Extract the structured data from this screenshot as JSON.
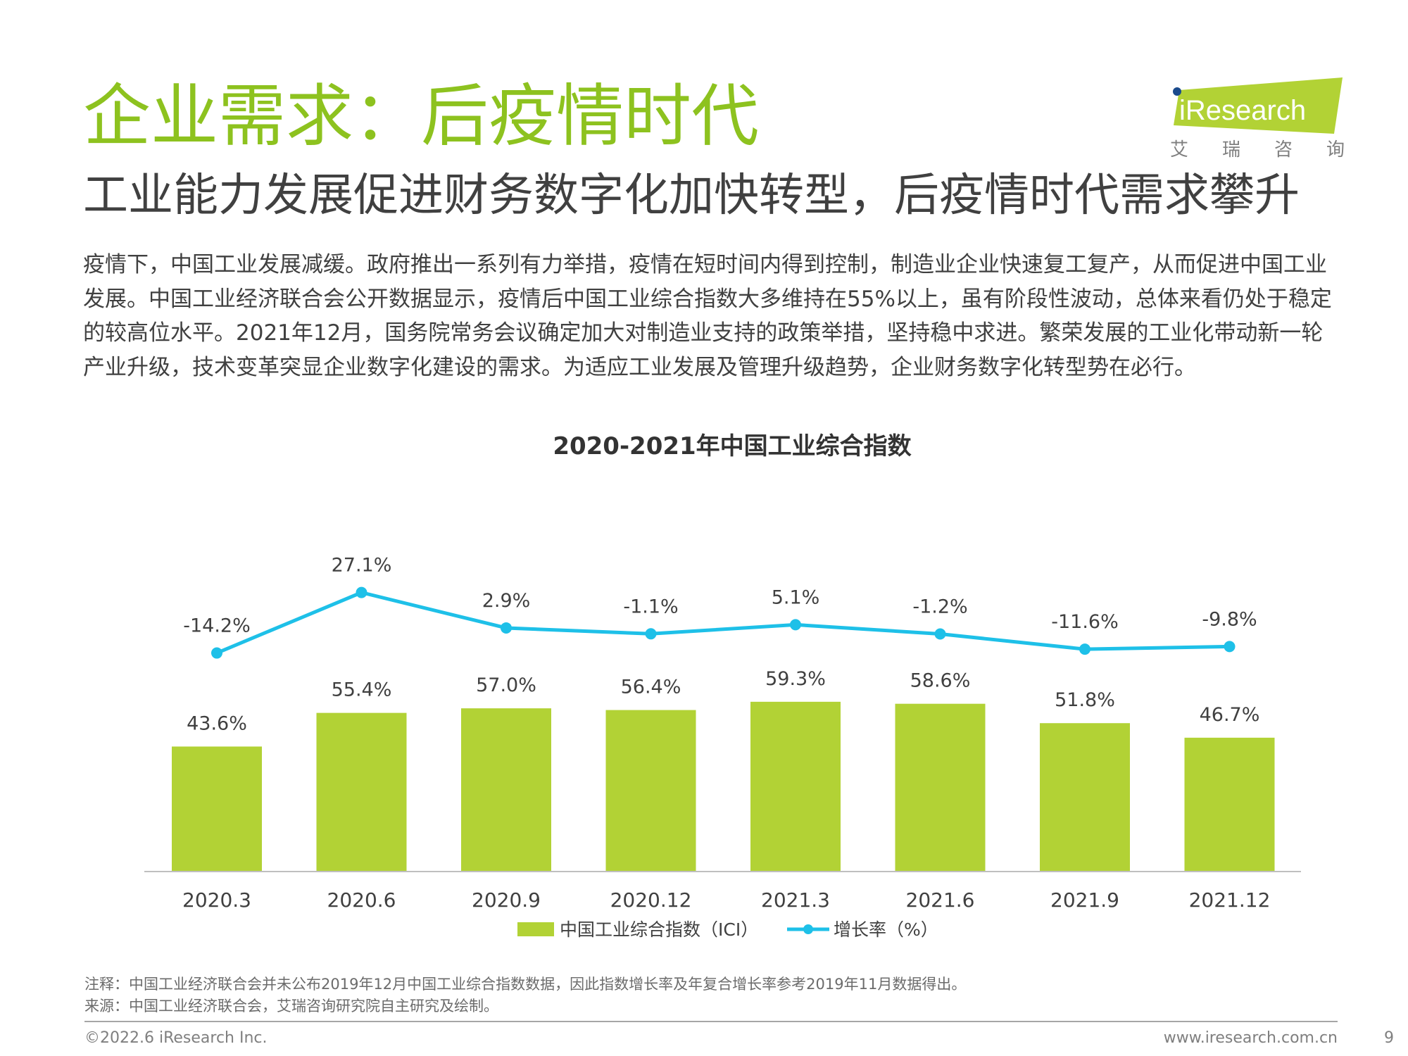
{
  "header": {
    "title": "企业需求：后疫情时代",
    "subtitle": "工业能力发展促进财务数字化加快转型，后疫情时代需求攀升"
  },
  "logo": {
    "brand": "iResearch",
    "tagline": [
      "艾",
      "瑞",
      "咨",
      "询"
    ],
    "accent_color": "#b2d235"
  },
  "body": {
    "paragraph": "疫情下，中国工业发展减缓。政府推出一系列有力举措，疫情在短时间内得到控制，制造业企业快速复工复产，从而促进中国工业发展。中国工业经济联合会公开数据显示，疫情后中国工业综合指数大多维持在55%以上，虽有阶段性波动，总体来看仍处于稳定的较高位水平。2021年12月，国务院常务会议确定加大对制造业支持的政策举措，坚持稳中求进。繁荣发展的工业化带动新一轮产业升级，技术变革突显企业数字化建设的需求。为适应工业发展及管理升级趋势，企业财务数字化转型势在必行。"
  },
  "chart_data": {
    "type": "bar",
    "title": "2020-2021年中国工业综合指数",
    "categories": [
      "2020.3",
      "2020.6",
      "2020.9",
      "2020.12",
      "2021.3",
      "2021.6",
      "2021.9",
      "2021.12"
    ],
    "series": [
      {
        "name": "中国工业综合指数（ICI）",
        "type": "bar",
        "color": "#b2d235",
        "values": [
          43.6,
          55.4,
          57.0,
          56.4,
          59.3,
          58.6,
          51.8,
          46.7
        ],
        "labels": [
          "43.6%",
          "55.4%",
          "57.0%",
          "56.4%",
          "59.3%",
          "58.6%",
          "51.8%",
          "46.7%"
        ]
      },
      {
        "name": "增长率（%）",
        "type": "line",
        "color": "#1ec0e8",
        "values": [
          -14.2,
          27.1,
          2.9,
          -1.1,
          5.1,
          -1.2,
          -11.6,
          -9.8
        ],
        "labels": [
          "-14.2%",
          "27.1%",
          "2.9%",
          "-1.1%",
          "5.1%",
          "-1.2%",
          "-11.6%",
          "-9.8%"
        ]
      }
    ],
    "legend_position": "bottom",
    "grid": false
  },
  "footnotes": {
    "note": "注释：中国工业经济联合会并未公布2019年12月中国工业综合指数数据，因此指数增长率及年复合增长率参考2019年11月数据得出。",
    "source": "来源：中国工业经济联合会，艾瑞咨询研究院自主研究及绘制。"
  },
  "footer": {
    "copyright": "©2022.6 iResearch Inc.",
    "website": "www.iresearch.com.cn",
    "page": "9"
  }
}
